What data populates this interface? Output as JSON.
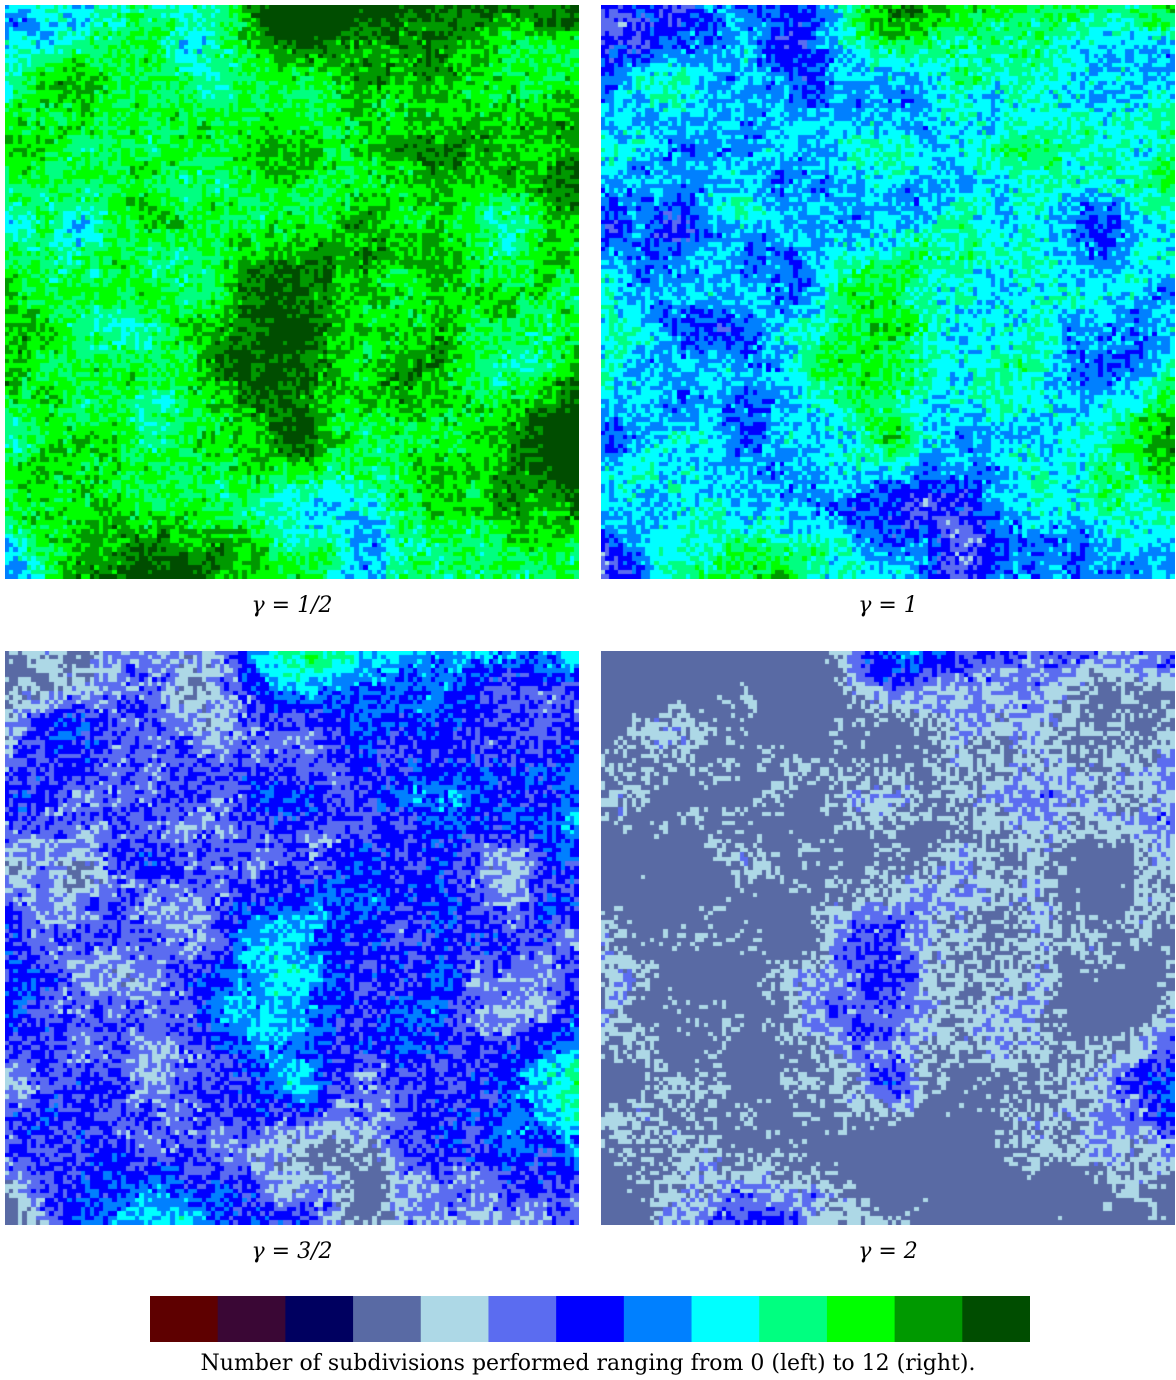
{
  "chart_data": [
    {
      "type": "heatmap",
      "title": "",
      "caption": "γ = 1/2",
      "gamma": 0.5,
      "value_range": [
        0,
        12
      ],
      "grid": false
    },
    {
      "type": "heatmap",
      "title": "",
      "caption": "γ = 1",
      "gamma": 1.0,
      "value_range": [
        0,
        12
      ],
      "grid": false
    },
    {
      "type": "heatmap",
      "title": "",
      "caption": "γ = 3/2",
      "gamma": 1.5,
      "value_range": [
        0,
        12
      ],
      "grid": false
    },
    {
      "type": "heatmap",
      "title": "",
      "caption": "γ = 2",
      "gamma": 2.0,
      "value_range": [
        0,
        12
      ],
      "grid": false
    }
  ],
  "colorbar": {
    "min": 0,
    "max": 12,
    "colors": [
      "#5e0000",
      "#3a0735",
      "#000060",
      "#596aa4",
      "#add8e6",
      "#5b6cf0",
      "#0000ff",
      "#0080ff",
      "#00ffff",
      "#00ff80",
      "#00ff00",
      "#009900",
      "#004d00"
    ],
    "label": "Number of subdivisions performed ranging from 0 (left) to 12 (right)."
  }
}
